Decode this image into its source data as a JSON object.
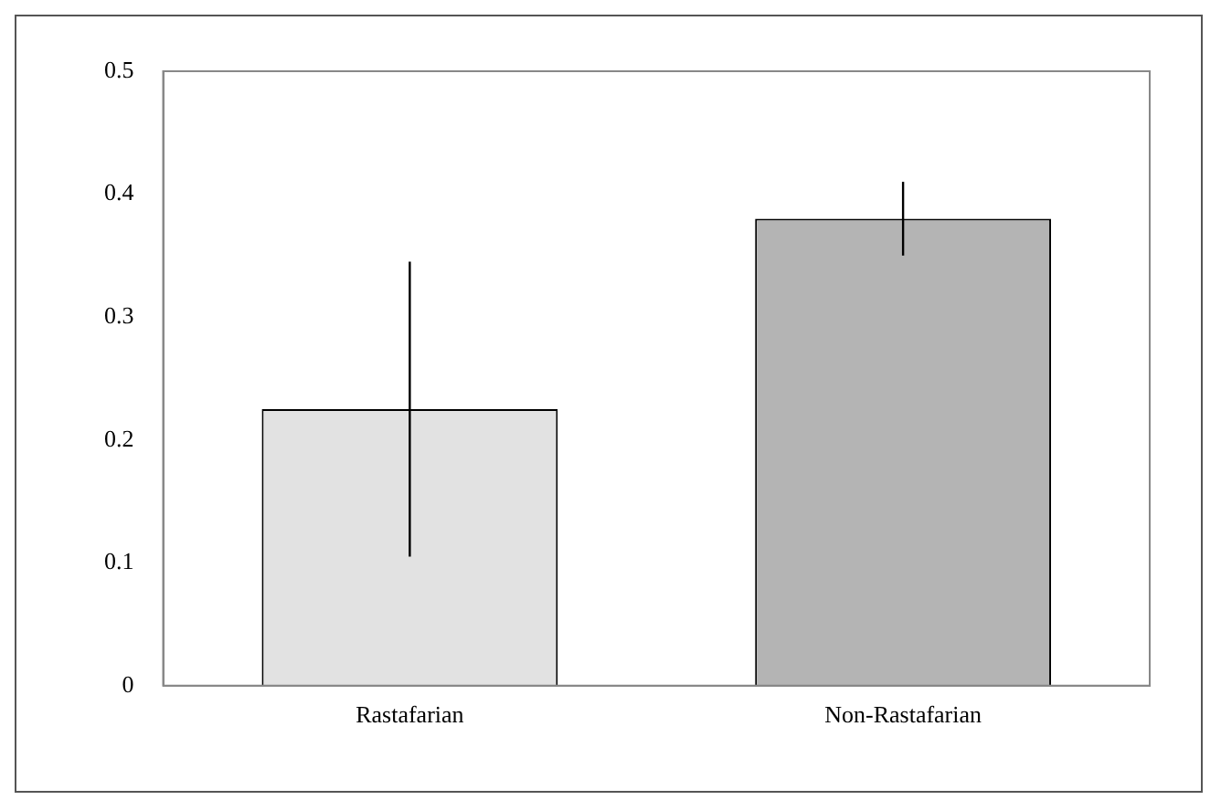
{
  "chart_data": {
    "type": "bar",
    "categories": [
      "Rastafarian",
      "Non-Rastafarian"
    ],
    "values": [
      0.225,
      0.38
    ],
    "colors": [
      "#e2e2e2",
      "#b4b4b4"
    ],
    "errors": [
      0.12,
      0.03
    ],
    "ylim": [
      0,
      0.5
    ],
    "yticks": [
      0,
      0.1,
      0.2,
      0.3,
      0.4,
      0.5
    ],
    "grid": false,
    "legend": false
  }
}
